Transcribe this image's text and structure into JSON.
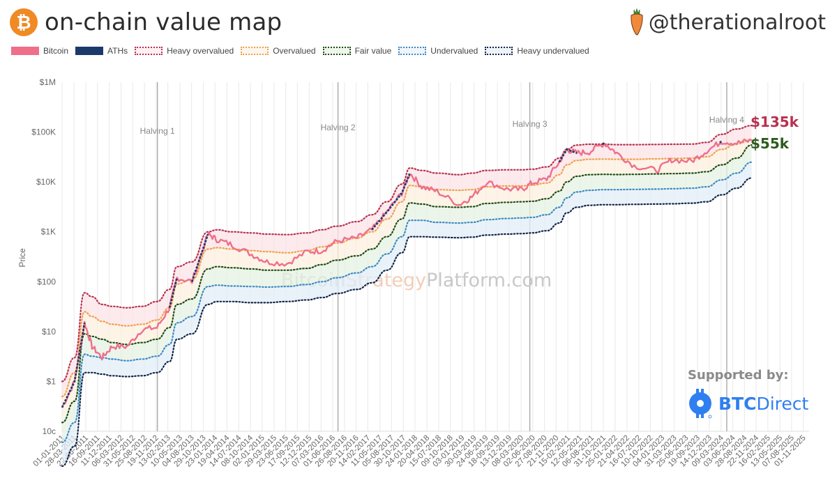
{
  "header": {
    "title": "on-chain value map",
    "logo_glyph": "₿",
    "logo_icon": "bitcoin-logo-icon",
    "handle": "@therationalroot",
    "handle_icon": "carrot-icon"
  },
  "legend": [
    {
      "label": "Bitcoin",
      "style": "solid",
      "color": "#ef6f8b",
      "fill": "#ef6f8b"
    },
    {
      "label": "ATHs",
      "style": "solid",
      "color": "#1b3a6b",
      "fill": "#1b3a6b"
    },
    {
      "label": "Heavy overvalued",
      "style": "dotted",
      "color": "#b8304f",
      "fill": "#fdf0f2"
    },
    {
      "label": "Overvalued",
      "style": "dotted",
      "color": "#f0a04b",
      "fill": "#fdf6ec"
    },
    {
      "label": "Fair value",
      "style": "dotted",
      "color": "#1f4d16",
      "fill": "#eef6ec"
    },
    {
      "label": "Undervalued",
      "style": "dotted",
      "color": "#3d8ac4",
      "fill": "#eef5fb"
    },
    {
      "label": "Heavy undervalued",
      "style": "dotted",
      "color": "#12264a",
      "fill": "#eef3f8"
    }
  ],
  "annotations": {
    "heavy_overvalued_price": "$135k",
    "fair_value_price": "$55k",
    "watermark_part1": "Bitcoin",
    "watermark_part2": "Strategy",
    "watermark_part3": "Platform.com",
    "supported_by": "Supported by:",
    "sponsor_bold": "BTC",
    "sponsor_rest": "Direct"
  },
  "chart_data": {
    "type": "line",
    "title": "on-chain value map",
    "xlabel": "",
    "ylabel": "Price",
    "yscale": "log",
    "ylim": [
      0.1,
      1000000
    ],
    "yticks": [
      "10c",
      "$1",
      "$10",
      "$100",
      "$1K",
      "$10K",
      "$100K",
      "$1M"
    ],
    "grid": {
      "vertical": true,
      "horizontal": false
    },
    "legend_position": "top-left",
    "xticks": [
      "01-01-2011",
      "28-03-2011",
      "22-06-2011",
      "16-09-2011",
      "11-12-2011",
      "06-03-2012",
      "31-05-2012",
      "25-08-2012",
      "19-11-2012",
      "13-02-2013",
      "10-05-2013",
      "04-08-2013",
      "29-10-2013",
      "23-01-2014",
      "19-04-2014",
      "14-07-2014",
      "08-10-2014",
      "02-01-2015",
      "29-03-2015",
      "23-06-2015",
      "17-09-2015",
      "12-12-2015",
      "07-03-2016",
      "01-06-2016",
      "26-08-2016",
      "20-11-2016",
      "14-02-2017",
      "11-05-2017",
      "05-08-2017",
      "30-10-2017",
      "24-01-2018",
      "20-04-2018",
      "15-07-2018",
      "09-10-2018",
      "03-01-2019",
      "30-03-2019",
      "24-06-2019",
      "18-09-2019",
      "13-12-2019",
      "08-03-2020",
      "02-06-2020",
      "27-08-2020",
      "21-11-2020",
      "15-02-2021",
      "12-05-2021",
      "06-08-2021",
      "31-10-2021",
      "25-01-2022",
      "21-04-2022",
      "16-07-2022",
      "10-10-2022",
      "04-01-2023",
      "31-03-2023",
      "25-06-2023",
      "19-09-2023",
      "14-12-2023",
      "09-03-2024",
      "03-06-2024",
      "28-08-2024",
      "22-11-2024",
      "16-02-2025",
      "13-05-2025",
      "07-08-2025",
      "01-11-2025"
    ],
    "vlines": [
      {
        "label": "Halving 1",
        "date": "2012-11-28"
      },
      {
        "label": "Halving 2",
        "date": "2016-07-09"
      },
      {
        "label": "Halving 3",
        "date": "2020-05-11"
      },
      {
        "label": "Halving 4",
        "date": "2024-04-20"
      }
    ],
    "x_years": [
      2011.0,
      2011.25,
      2011.45,
      2011.6,
      2011.8,
      2012.0,
      2012.3,
      2012.6,
      2012.9,
      2013.15,
      2013.3,
      2013.6,
      2013.92,
      2014.1,
      2014.4,
      2014.8,
      2015.1,
      2015.5,
      2015.9,
      2016.2,
      2016.5,
      2016.9,
      2017.2,
      2017.5,
      2017.8,
      2017.96,
      2018.2,
      2018.5,
      2018.95,
      2019.2,
      2019.5,
      2019.9,
      2020.2,
      2020.4,
      2020.7,
      2020.95,
      2021.1,
      2021.3,
      2021.55,
      2021.85,
      2022.1,
      2022.45,
      2022.9,
      2023.2,
      2023.6,
      2023.9,
      2024.2,
      2024.5,
      2024.8
    ],
    "series": [
      {
        "name": "Bitcoin",
        "color": "#ef6f8b",
        "values": [
          0.3,
          1.0,
          15,
          5,
          3,
          5,
          5,
          11,
          12,
          30,
          120,
          100,
          900,
          700,
          550,
          350,
          250,
          230,
          400,
          420,
          650,
          750,
          1100,
          2500,
          6000,
          15000,
          8000,
          6500,
          3500,
          5000,
          10000,
          7200,
          7000,
          9500,
          11500,
          25000,
          45000,
          38000,
          40000,
          60000,
          38000,
          21000,
          17000,
          28000,
          26000,
          42000,
          65000,
          60000,
          68000
        ]
      },
      {
        "name": "Heavy overvalued",
        "color": "#b8304f",
        "values": [
          1.0,
          3,
          60,
          50,
          35,
          32,
          30,
          32,
          40,
          70,
          200,
          250,
          1000,
          1100,
          1000,
          950,
          900,
          880,
          950,
          1100,
          1300,
          1600,
          2200,
          4000,
          9000,
          19000,
          17000,
          15000,
          14000,
          15000,
          17000,
          17500,
          17500,
          18000,
          20000,
          30000,
          45000,
          55000,
          57000,
          57000,
          56000,
          56000,
          56500,
          57000,
          57500,
          62000,
          90000,
          115000,
          135000
        ]
      },
      {
        "name": "Overvalued",
        "color": "#f0a04b",
        "values": [
          0.5,
          1.5,
          25,
          20,
          16,
          14,
          13,
          14,
          17,
          30,
          90,
          110,
          450,
          480,
          450,
          420,
          400,
          380,
          420,
          500,
          600,
          750,
          1000,
          1800,
          4000,
          8500,
          8000,
          7000,
          6800,
          7000,
          8000,
          8300,
          8300,
          8600,
          9500,
          14000,
          22000,
          27000,
          28500,
          28800,
          28500,
          28500,
          29000,
          29500,
          30000,
          32000,
          45000,
          58000,
          70000
        ]
      },
      {
        "name": "Fair value",
        "color": "#1f4d16",
        "values": [
          0.15,
          0.4,
          9,
          8,
          7,
          6,
          5.5,
          6,
          7,
          12,
          35,
          45,
          180,
          200,
          190,
          180,
          170,
          170,
          185,
          220,
          270,
          330,
          450,
          800,
          1800,
          3800,
          3600,
          3200,
          3100,
          3200,
          3700,
          3900,
          4000,
          4100,
          4600,
          6500,
          10000,
          13000,
          14000,
          14200,
          14100,
          14200,
          14500,
          14700,
          15000,
          16000,
          22000,
          30000,
          55000
        ]
      },
      {
        "name": "Undervalued",
        "color": "#3d8ac4",
        "values": [
          0.06,
          0.15,
          3.5,
          3.2,
          3,
          2.8,
          2.6,
          2.8,
          3.2,
          5.5,
          15,
          20,
          80,
          85,
          82,
          80,
          78,
          80,
          88,
          100,
          120,
          150,
          200,
          360,
          800,
          1700,
          1700,
          1550,
          1500,
          1550,
          1750,
          1850,
          1900,
          1950,
          2200,
          3100,
          4800,
          6300,
          6800,
          7000,
          7000,
          7100,
          7200,
          7300,
          7500,
          8000,
          11000,
          15000,
          25000
        ]
      },
      {
        "name": "Heavy undervalued",
        "color": "#12264a",
        "values": [
          0.02,
          0.05,
          1.5,
          1.5,
          1.4,
          1.3,
          1.25,
          1.3,
          1.5,
          2.5,
          7,
          9,
          35,
          40,
          40,
          38,
          38,
          40,
          43,
          48,
          58,
          70,
          95,
          170,
          380,
          800,
          800,
          780,
          760,
          780,
          860,
          900,
          920,
          950,
          1050,
          1500,
          2400,
          3100,
          3400,
          3500,
          3500,
          3550,
          3600,
          3650,
          3750,
          4000,
          5500,
          7500,
          12000
        ]
      }
    ]
  }
}
